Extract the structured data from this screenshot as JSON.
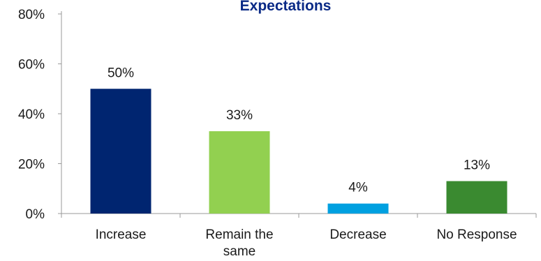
{
  "chart_data": {
    "type": "bar",
    "title": "Expectations",
    "categories": [
      [
        "Increase"
      ],
      [
        "Remain the",
        "same"
      ],
      [
        "Decrease"
      ],
      [
        "No Response"
      ]
    ],
    "values": [
      50,
      33,
      4,
      13
    ],
    "value_labels": [
      "50%",
      "33%",
      "4%",
      "13%"
    ],
    "colors": [
      "#002570",
      "#92d050",
      "#00a0e0",
      "#3a8a30"
    ],
    "ylim": [
      0,
      80
    ],
    "yticks": [
      0,
      20,
      40,
      60,
      80
    ],
    "ytick_labels": [
      "0%",
      "20%",
      "40%",
      "60%",
      "80%"
    ],
    "grid": false,
    "xlabel": "",
    "ylabel": ""
  }
}
